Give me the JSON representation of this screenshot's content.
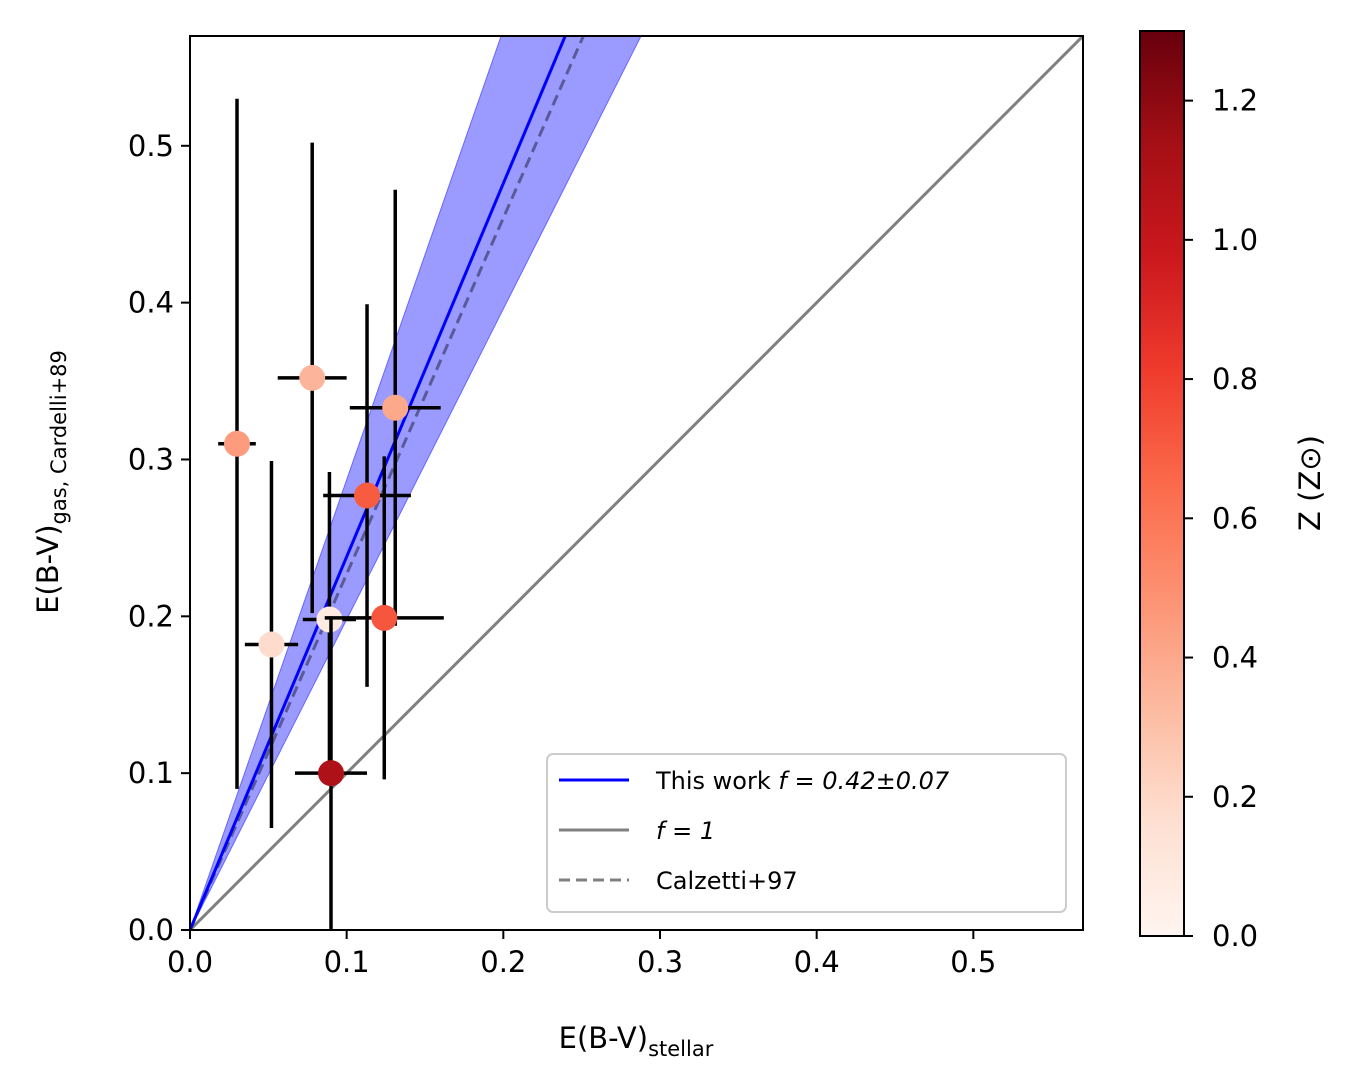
{
  "chart_data": {
    "type": "scatter",
    "title": "",
    "xlabel": {
      "main": "E(B-V)",
      "sub": "stellar"
    },
    "ylabel": {
      "main": "E(B-V)",
      "sub": "gas, Cardelli+89"
    },
    "xlim": [
      0.0,
      0.57
    ],
    "ylim": [
      0.0,
      0.57
    ],
    "xticks": [
      0.0,
      0.1,
      0.2,
      0.3,
      0.4,
      0.5
    ],
    "yticks": [
      0.0,
      0.1,
      0.2,
      0.3,
      0.4,
      0.5
    ],
    "tick_labels_x": [
      "0.0",
      "0.1",
      "0.2",
      "0.3",
      "0.4",
      "0.5"
    ],
    "tick_labels_y": [
      "0.0",
      "0.1",
      "0.2",
      "0.3",
      "0.4",
      "0.5"
    ],
    "points": [
      {
        "x": 0.03,
        "y": 0.31,
        "xerr": 0.012,
        "yerr_lo": 0.22,
        "yerr_hi": 0.22,
        "z": 0.45
      },
      {
        "x": 0.078,
        "y": 0.352,
        "xerr": 0.022,
        "yerr_lo": 0.15,
        "yerr_hi": 0.15,
        "z": 0.35
      },
      {
        "x": 0.131,
        "y": 0.333,
        "xerr": 0.029,
        "yerr_lo": 0.139,
        "yerr_hi": 0.139,
        "z": 0.4
      },
      {
        "x": 0.113,
        "y": 0.277,
        "xerr": 0.028,
        "yerr_lo": 0.122,
        "yerr_hi": 0.122,
        "z": 0.7
      },
      {
        "x": 0.052,
        "y": 0.182,
        "xerr": 0.017,
        "yerr_lo": 0.117,
        "yerr_hi": 0.117,
        "z": 0.18
      },
      {
        "x": 0.089,
        "y": 0.198,
        "xerr": 0.017,
        "yerr_lo": 0.094,
        "yerr_hi": 0.094,
        "z": 0.08
      },
      {
        "x": 0.124,
        "y": 0.199,
        "xerr": 0.038,
        "yerr_lo": 0.103,
        "yerr_hi": 0.103,
        "z": 0.72
      },
      {
        "x": 0.09,
        "y": 0.1,
        "xerr": 0.023,
        "yerr_lo": 0.1,
        "yerr_hi": 0.1,
        "z": 1.1
      }
    ],
    "fit_line": {
      "label_prefix": "This work ",
      "label_math": "f = 0.42±0.07",
      "slope": 2.38,
      "slope_lo": 1.98,
      "slope_hi": 2.87,
      "color": "#0000ff",
      "band_color": "#9a9aff"
    },
    "unity_line": {
      "label_math": "f = 1",
      "slope": 1.0,
      "color": "#808080"
    },
    "calzetti_line": {
      "label": "Calzetti+97",
      "slope": 2.27,
      "color": "#808080"
    },
    "legend_position": "lower-right",
    "colorbar": {
      "label": "Z (Z⊙)",
      "min": 0.0,
      "max": 1.3,
      "ticks": [
        0.0,
        0.2,
        0.4,
        0.6,
        0.8,
        1.0,
        1.2
      ],
      "tick_labels": [
        "0.0",
        "0.2",
        "0.4",
        "0.6",
        "0.8",
        "1.0",
        "1.2"
      ],
      "colormap": "Reds",
      "colormap_stops": [
        "#fff5f0",
        "#fee0d2",
        "#fcbba1",
        "#fc9272",
        "#fb6a4a",
        "#ef3b2c",
        "#cb181d",
        "#a50f15",
        "#67000d"
      ]
    }
  }
}
